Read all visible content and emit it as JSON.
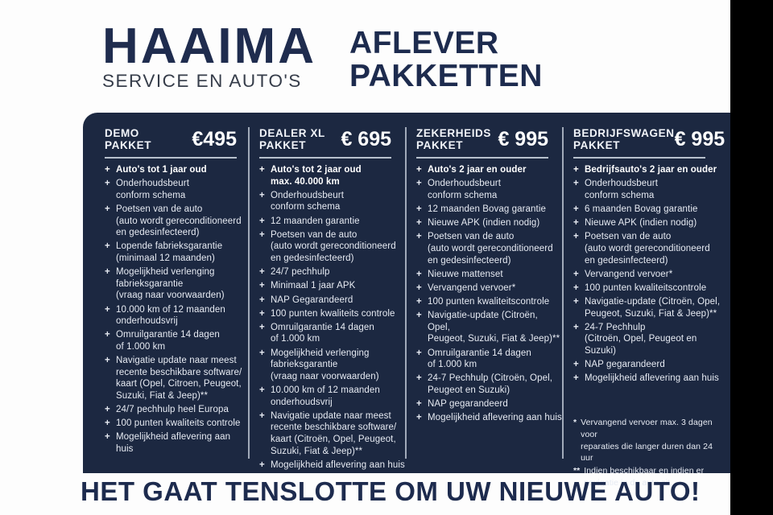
{
  "brand": {
    "name": "HAAIMA",
    "subtitle": "SERVICE EN AUTO'S"
  },
  "page_title": {
    "line1": "AFLEVER",
    "line2": "PAKKETTEN"
  },
  "tagline": "HET GAAT TENSLOTTE OM UW NIEUWE AUTO!",
  "colors": {
    "background": "#fdfdfd",
    "panel_navy": "#1c2841",
    "heading_navy": "#1d2b4e",
    "panel_text": "#e7ebf3",
    "divider": "#cdd5e2",
    "letterbox": "#000000"
  },
  "packages": [
    {
      "name": "DEMO\nPAKKET",
      "price": "€495",
      "bold_first_item": true,
      "items": [
        "Auto's tot 1 jaar oud",
        "Onderhoudsbeurt\nconform schema",
        "Poetsen van de auto\n(auto wordt gereconditioneerd\nen gedesinfecteerd)",
        "Lopende fabrieksgarantie\n(minimaal 12 maanden)",
        "Mogelijkheid verlenging\nfabrieksgarantie\n(vraag naar voorwaarden)",
        "10.000 km of 12 maanden\nonderhoudsvrij",
        "Omruilgarantie 14 dagen\nof 1.000 km",
        "Navigatie update naar meest\nrecente beschikbare software/\nkaart (Opel, Citroen, Peugeot,\nSuzuki, Fiat & Jeep)**",
        "24/7 pechhulp heel Europa",
        "100 punten kwaliteits controle",
        "Mogelijkheid aflevering aan huis"
      ]
    },
    {
      "name": "DEALER XL\nPAKKET",
      "price": "€ 695",
      "bold_first_item": true,
      "items": [
        "Auto's tot 2 jaar oud\nmax. 40.000 km",
        "Onderhoudsbeurt\nconform schema",
        "12 maanden garantie",
        "Poetsen van de auto\n(auto wordt gereconditioneerd\nen gedesinfecteerd)",
        "24/7 pechhulp",
        "Minimaal 1 jaar APK",
        "NAP Gegarandeerd",
        "100 punten kwaliteits controle",
        "Omruilgarantie 14 dagen\nof 1.000 km",
        "Mogelijkheid verlenging\nfabrieksgarantie\n(vraag naar voorwaarden)",
        "10.000 km of 12 maanden\nonderhoudsvrij",
        "Navigatie update naar meest\nrecente beschikbare software/\nkaart (Citroën, Opel, Peugeot,\nSuzuki, Fiat & Jeep)**",
        "Mogelijkheid aflevering aan huis"
      ]
    },
    {
      "name": "ZEKERHEIDS\nPAKKET",
      "price": "€ 995",
      "bold_first_item": true,
      "items": [
        "Auto's 2 jaar en ouder",
        "Onderhoudsbeurt\nconform schema",
        "12 maanden Bovag garantie",
        "Nieuwe APK (indien nodig)",
        "Poetsen van de auto\n(auto wordt gereconditioneerd\nen gedesinfecteerd)",
        "Nieuwe mattenset",
        "Vervangend vervoer*",
        "100 punten kwaliteitscontrole",
        "Navigatie-update (Citroën, Opel,\nPeugeot, Suzuki, Fiat & Jeep)**",
        "Omruilgarantie 14 dagen\nof 1.000 km",
        "24-7 Pechhulp (Citroën, Opel,\nPeugeot en Suzuki)",
        "NAP gegarandeerd",
        "Mogelijkheid aflevering aan huis"
      ]
    },
    {
      "name": "BEDRIJFSWAGEN\nPAKKET",
      "price": "€ 995",
      "bold_first_item": true,
      "items": [
        "Bedrijfsauto's 2 jaar en ouder",
        "Onderhoudsbeurt\nconform schema",
        "6 maanden Bovag garantie",
        "Nieuwe APK (indien nodig)",
        "Poetsen van de auto\n(auto wordt gereconditioneerd\nen gedesinfecteerd)",
        "Vervangend vervoer*",
        "100 punten kwaliteitscontrole",
        "Navigatie-update (Citroën, Opel,\nPeugeot, Suzuki, Fiat & Jeep)**",
        "24-7 Pechhulp\n(Citroën, Opel, Peugeot en Suzuki)",
        "NAP gegarandeerd",
        "Mogelijkheid aflevering aan huis"
      ]
    }
  ],
  "footnotes": [
    {
      "marker": "*",
      "text": "Vervangend vervoer max. 3 dagen voor\nreparaties die langer duren dan 24 uur"
    },
    {
      "marker": "**",
      "text": "Indien beschikbaar en indien er\nnavigatie in de auto zit."
    }
  ]
}
